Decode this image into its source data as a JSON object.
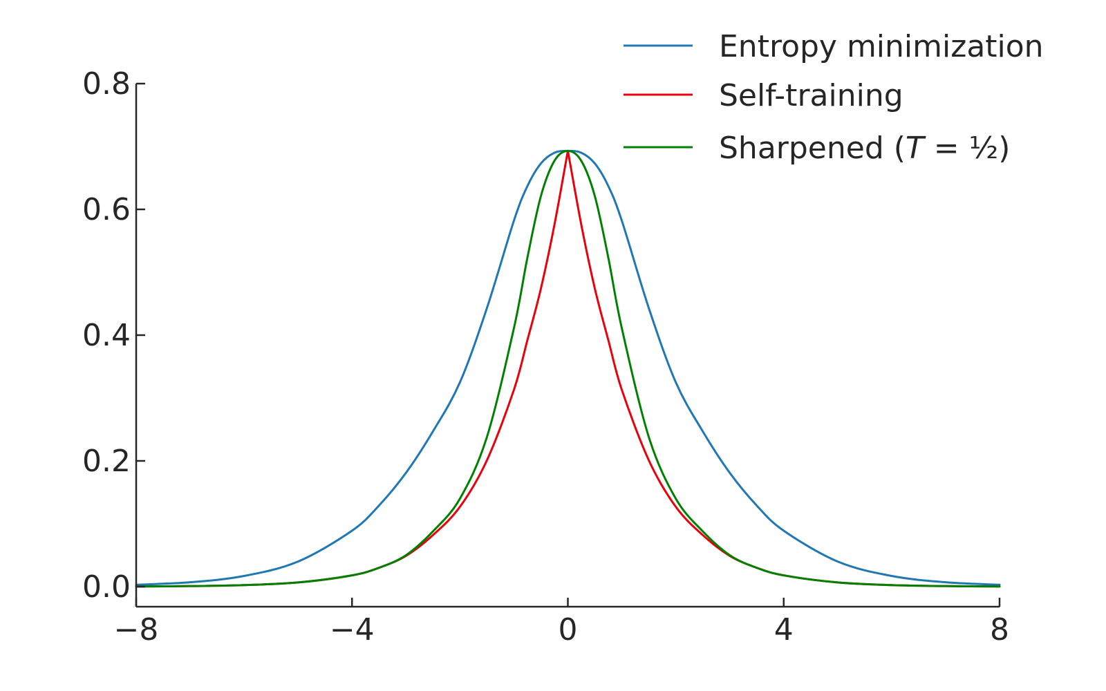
{
  "chart_data": {
    "type": "line",
    "title": "",
    "xlabel": "",
    "ylabel": "",
    "xlim": [
      -8,
      8
    ],
    "ylim": [
      0,
      0.8
    ],
    "xticks": [
      -8,
      -4,
      0,
      4,
      8
    ],
    "xtick_labels": [
      "−8",
      "−4",
      "0",
      "4",
      "8"
    ],
    "yticks": [
      0.0,
      0.2,
      0.4,
      0.6,
      0.8
    ],
    "ytick_labels": [
      "0.0",
      "0.2",
      "0.4",
      "0.6",
      "0.8"
    ],
    "grid": false,
    "legend_position": "top-right",
    "x": [
      -8,
      -7,
      -6,
      -5,
      -4,
      -3.5,
      -3,
      -2.5,
      -2,
      -1.5,
      -1,
      -0.75,
      -0.5,
      -0.25,
      0,
      0.25,
      0.5,
      0.75,
      1,
      1.5,
      2,
      2.5,
      3,
      3.5,
      4,
      5,
      6,
      7,
      8
    ],
    "series": [
      {
        "name": "Entropy minimization",
        "color": "#1f77b4",
        "values": [
          0.003,
          0.007,
          0.017,
          0.04,
          0.089,
          0.129,
          0.181,
          0.247,
          0.325,
          0.443,
          0.582,
          0.637,
          0.673,
          0.69,
          0.693,
          0.69,
          0.673,
          0.637,
          0.582,
          0.443,
          0.325,
          0.247,
          0.181,
          0.129,
          0.089,
          0.04,
          0.017,
          0.007,
          0.003
        ]
      },
      {
        "name": "Self-training",
        "color": "#e8000b",
        "values": [
          0.0003,
          0.0009,
          0.0025,
          0.0067,
          0.018,
          0.03,
          0.049,
          0.082,
          0.127,
          0.201,
          0.313,
          0.392,
          0.474,
          0.575,
          0.693,
          0.575,
          0.474,
          0.392,
          0.313,
          0.201,
          0.127,
          0.082,
          0.049,
          0.03,
          0.018,
          0.0067,
          0.0025,
          0.0009,
          0.0003
        ]
      },
      {
        "name": "Sharpened (T = ½)",
        "name_prefix": "Sharpened (",
        "name_italic": "T",
        "name_suffix": " = ½)",
        "color": "#008000",
        "values": [
          0.0003,
          0.0009,
          0.0025,
          0.0067,
          0.018,
          0.03,
          0.05,
          0.088,
          0.14,
          0.238,
          0.411,
          0.523,
          0.621,
          0.677,
          0.693,
          0.677,
          0.621,
          0.523,
          0.411,
          0.238,
          0.14,
          0.088,
          0.05,
          0.03,
          0.018,
          0.0067,
          0.0025,
          0.0009,
          0.0003
        ]
      }
    ]
  }
}
